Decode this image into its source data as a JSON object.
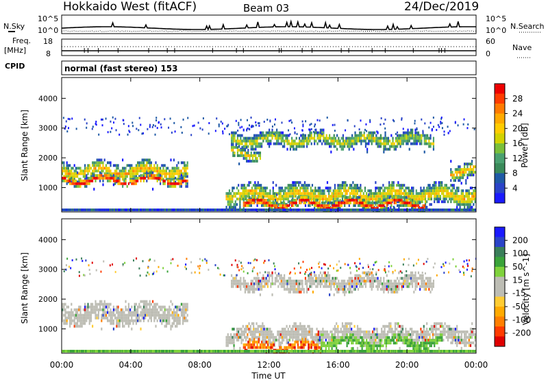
{
  "header": {
    "station": "Hokkaido West (fitACF)",
    "beam": "Beam 03",
    "date": "24/Dec/2019"
  },
  "colors": {
    "power_scale": [
      "#1a1aff",
      "#2a44c8",
      "#1f5aa6",
      "#3a8a5a",
      "#4aa070",
      "#7abf3a",
      "#d2d200",
      "#ffcc00",
      "#ffaa00",
      "#ff7a00",
      "#ff3c00",
      "#ee0000"
    ],
    "velocity_scale": [
      "#e00000",
      "#ff3c00",
      "#ff7f00",
      "#ffaa00",
      "#ffcc33",
      "#bdbdb4",
      "#bdbdb4",
      "#7fd23c",
      "#3aa33a",
      "#3a7f5a",
      "#2a44c8",
      "#1a1aff"
    ]
  },
  "chart_data": [
    {
      "type": "line",
      "name": "noise-panel",
      "left_label": "N.Sky",
      "left_ticks": [
        "10^5",
        "10^0"
      ],
      "right_label": "N.Search",
      "right_ticks": [
        "10^5",
        "10^0"
      ]
    },
    {
      "type": "line",
      "name": "freq-nave-panel",
      "left_label": [
        "Freq.",
        "[MHz]"
      ],
      "left_ticks": [
        "18",
        "8"
      ],
      "right_label": "Nave",
      "right_ticks": [
        "60",
        "0"
      ]
    },
    {
      "type": "table",
      "name": "cpid-panel",
      "label": "CPID",
      "value": "normal (fast stereo) 153"
    },
    {
      "type": "heatmap",
      "name": "power",
      "ylabel": "Slant Range [km]",
      "y_ticks": [
        1000,
        2000,
        3000,
        4000
      ],
      "ylim": [
        180,
        4700
      ],
      "xlim": [
        0,
        24
      ],
      "colorbar_label": "Power [dB]",
      "colorbar_ticks": [
        "28",
        "24",
        "20",
        "16",
        "12",
        "8",
        "4"
      ],
      "colorbar_range": [
        0,
        30
      ],
      "echo_bands": [
        {
          "t": [
            0.0,
            7.3
          ],
          "r_center": 1500,
          "r_halfwidth": 300,
          "level": 0.6
        },
        {
          "t": [
            0.0,
            7.3
          ],
          "r_center": 1200,
          "r_halfwidth": 150,
          "level": 0.95
        },
        {
          "t": [
            9.8,
            21.5
          ],
          "r_center": 2550,
          "r_halfwidth": 250,
          "level": 0.45
        },
        {
          "t": [
            9.8,
            11.5
          ],
          "r_center": 2100,
          "r_halfwidth": 200,
          "level": 0.5
        },
        {
          "t": [
            9.5,
            24.0
          ],
          "r_center": 700,
          "r_halfwidth": 350,
          "level": 0.55
        },
        {
          "t": [
            10.5,
            21.0
          ],
          "r_center": 400,
          "r_halfwidth": 180,
          "level": 0.95
        },
        {
          "t": [
            22.5,
            24.0
          ],
          "r_center": 1500,
          "r_halfwidth": 250,
          "level": 0.6
        }
      ]
    },
    {
      "type": "heatmap",
      "name": "velocity",
      "ylabel": "Slant Range [km]",
      "y_ticks": [
        1000,
        2000,
        3000,
        4000
      ],
      "ylim": [
        180,
        4700
      ],
      "xlim": [
        0,
        24
      ],
      "xlabel": "Time UT",
      "x_ticks": [
        "00:00",
        "04:00",
        "08:00",
        "12:00",
        "16:00",
        "20:00",
        "00:00"
      ],
      "x_tick_values": [
        0,
        4,
        8,
        12,
        16,
        20,
        24
      ],
      "colorbar_label": "Velocity [m s^-1]",
      "colorbar_ticks": [
        "200",
        "100",
        "50",
        "15",
        "-15",
        "-50",
        "-100",
        "-200"
      ],
      "echo_bands": [
        {
          "t": [
            0.0,
            7.3
          ],
          "r_center": 1450,
          "r_halfwidth": 350,
          "kind": "ground"
        },
        {
          "t": [
            9.8,
            21.5
          ],
          "r_center": 2500,
          "r_halfwidth": 250,
          "kind": "ground"
        },
        {
          "t": [
            9.5,
            24.0
          ],
          "r_center": 750,
          "r_halfwidth": 300,
          "kind": "ground"
        },
        {
          "t": [
            10.5,
            15.0
          ],
          "r_center": 350,
          "r_halfwidth": 150,
          "kind": "negative"
        },
        {
          "t": [
            15.0,
            22.0
          ],
          "r_center": 500,
          "r_halfwidth": 150,
          "kind": "positive"
        }
      ]
    }
  ]
}
